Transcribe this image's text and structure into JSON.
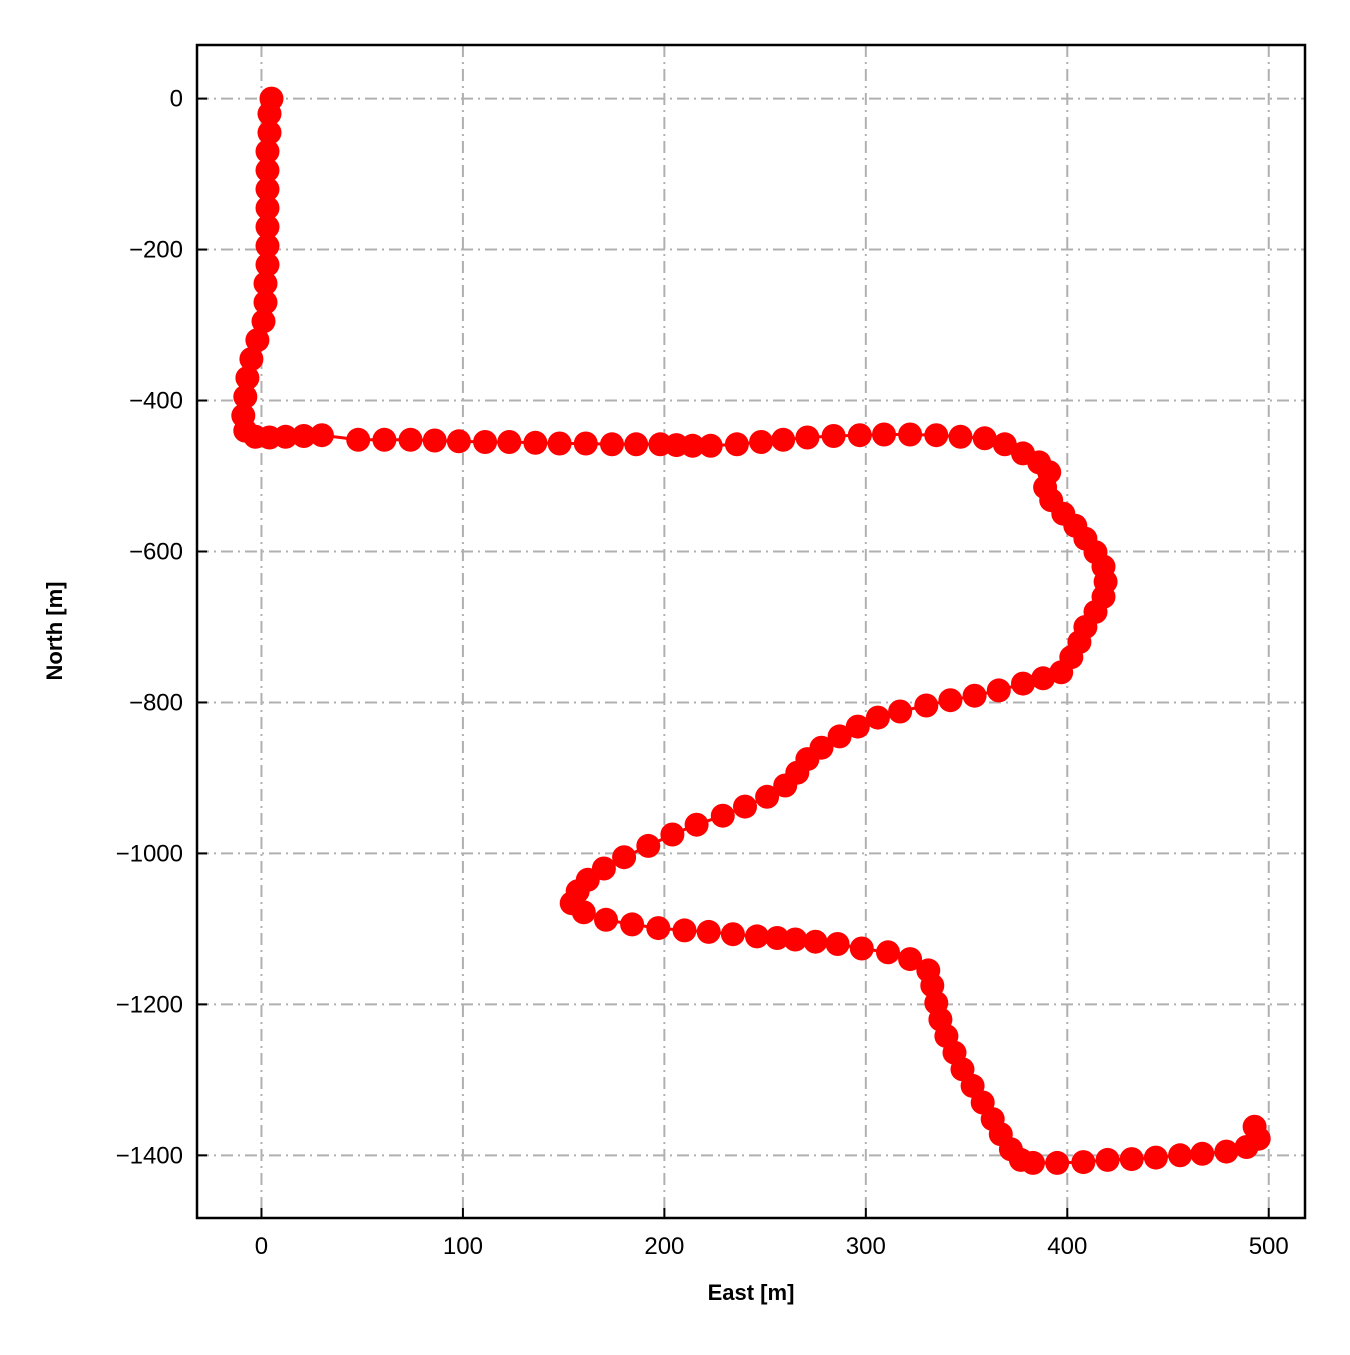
{
  "chart_data": {
    "type": "scatter",
    "xlabel": "East [m]",
    "ylabel": "North [m]",
    "xlim": [
      -32,
      518
    ],
    "ylim": [
      -1483,
      71
    ],
    "xticks": [
      0,
      100,
      200,
      300,
      400,
      500
    ],
    "yticks": [
      0,
      -200,
      -400,
      -600,
      -800,
      -1000,
      -1200,
      -1400
    ],
    "xtick_labels": [
      "0",
      "100",
      "200",
      "300",
      "400",
      "500"
    ],
    "ytick_labels": [
      "0",
      "−200",
      "−400",
      "−600",
      "−800",
      "−1000",
      "−1200",
      "−1400"
    ],
    "grid": true,
    "color": "#ff0000",
    "series": [
      {
        "marker": "circle",
        "points": [
          [
            5,
            0
          ],
          [
            4,
            -20
          ],
          [
            4,
            -45
          ],
          [
            3,
            -70
          ],
          [
            3,
            -95
          ],
          [
            3,
            -120
          ],
          [
            3,
            -145
          ],
          [
            3,
            -170
          ],
          [
            3,
            -195
          ],
          [
            3,
            -220
          ],
          [
            2,
            -245
          ],
          [
            2,
            -270
          ],
          [
            1,
            -295
          ],
          [
            -2,
            -320
          ],
          [
            -5,
            -345
          ],
          [
            -7,
            -370
          ],
          [
            -8,
            -395
          ],
          [
            -9,
            -420
          ],
          [
            -8,
            -440
          ],
          [
            -3,
            -448
          ],
          [
            4,
            -449
          ],
          [
            12,
            -448
          ],
          [
            21,
            -447
          ],
          [
            30,
            -446
          ],
          [
            48,
            -452
          ],
          [
            61,
            -452
          ],
          [
            74,
            -452
          ],
          [
            86,
            -453
          ],
          [
            98,
            -454
          ],
          [
            111,
            -455
          ],
          [
            123,
            -455
          ],
          [
            136,
            -456
          ],
          [
            148,
            -457
          ],
          [
            161,
            -457
          ],
          [
            174,
            -458
          ],
          [
            186,
            -458
          ],
          [
            198,
            -458
          ],
          [
            206,
            -459
          ],
          [
            214,
            -460
          ],
          [
            223,
            -460
          ],
          [
            236,
            -458
          ],
          [
            248,
            -455
          ],
          [
            259,
            -452
          ],
          [
            271,
            -449
          ],
          [
            284,
            -447
          ],
          [
            297,
            -446
          ],
          [
            309,
            -445
          ],
          [
            322,
            -445
          ],
          [
            335,
            -446
          ],
          [
            347,
            -448
          ],
          [
            359,
            -450
          ],
          [
            369,
            -458
          ],
          [
            378,
            -470
          ],
          [
            386,
            -482
          ],
          [
            391,
            -495
          ],
          [
            389,
            -515
          ],
          [
            392,
            -532
          ],
          [
            398,
            -550
          ],
          [
            404,
            -566
          ],
          [
            409,
            -583
          ],
          [
            414,
            -601
          ],
          [
            418,
            -620
          ],
          [
            419,
            -640
          ],
          [
            418,
            -660
          ],
          [
            414,
            -680
          ],
          [
            409,
            -700
          ],
          [
            406,
            -720
          ],
          [
            402,
            -740
          ],
          [
            397,
            -760
          ],
          [
            388,
            -768
          ],
          [
            378,
            -775
          ],
          [
            366,
            -784
          ],
          [
            354,
            -791
          ],
          [
            342,
            -797
          ],
          [
            330,
            -804
          ],
          [
            317,
            -812
          ],
          [
            306,
            -820
          ],
          [
            296,
            -832
          ],
          [
            287,
            -845
          ],
          [
            278,
            -860
          ],
          [
            271,
            -875
          ],
          [
            266,
            -893
          ],
          [
            260,
            -910
          ],
          [
            251,
            -925
          ],
          [
            240,
            -938
          ],
          [
            229,
            -950
          ],
          [
            216,
            -962
          ],
          [
            204,
            -975
          ],
          [
            192,
            -990
          ],
          [
            180,
            -1005
          ],
          [
            170,
            -1020
          ],
          [
            162,
            -1035
          ],
          [
            157,
            -1050
          ],
          [
            154,
            -1066
          ],
          [
            160,
            -1078
          ],
          [
            171,
            -1088
          ],
          [
            184,
            -1094
          ],
          [
            197,
            -1099
          ],
          [
            210,
            -1102
          ],
          [
            222,
            -1104
          ],
          [
            234,
            -1107
          ],
          [
            246,
            -1110
          ],
          [
            256,
            -1112
          ],
          [
            265,
            -1114
          ],
          [
            275,
            -1117
          ],
          [
            286,
            -1120
          ],
          [
            298,
            -1126
          ],
          [
            311,
            -1131
          ],
          [
            322,
            -1140
          ],
          [
            331,
            -1155
          ],
          [
            333,
            -1175
          ],
          [
            335,
            -1198
          ],
          [
            337,
            -1220
          ],
          [
            340,
            -1242
          ],
          [
            344,
            -1264
          ],
          [
            348,
            -1286
          ],
          [
            353,
            -1308
          ],
          [
            358,
            -1330
          ],
          [
            363,
            -1352
          ],
          [
            367,
            -1372
          ],
          [
            372,
            -1392
          ],
          [
            377,
            -1406
          ],
          [
            383,
            -1410
          ],
          [
            395,
            -1410
          ],
          [
            408,
            -1409
          ],
          [
            420,
            -1406
          ],
          [
            432,
            -1405
          ],
          [
            444,
            -1403
          ],
          [
            456,
            -1400
          ],
          [
            467,
            -1398
          ],
          [
            479,
            -1395
          ],
          [
            489,
            -1389
          ],
          [
            495,
            -1378
          ],
          [
            493,
            -1362
          ]
        ]
      }
    ]
  }
}
